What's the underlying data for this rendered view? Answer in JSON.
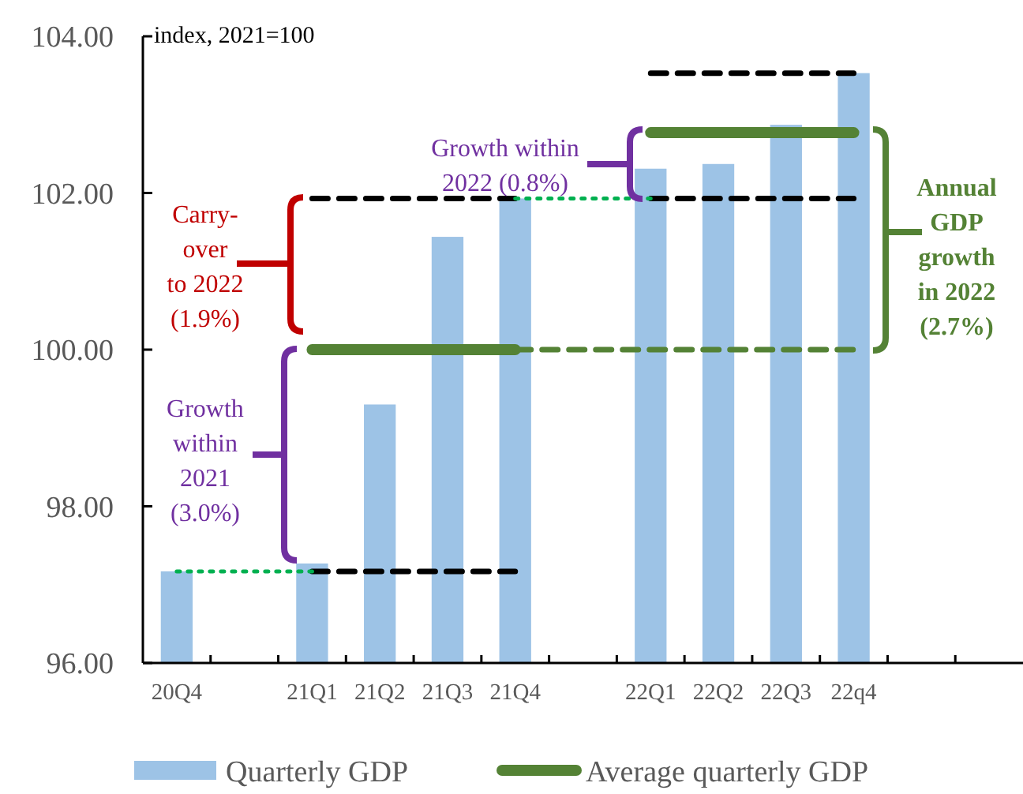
{
  "chart_data": {
    "type": "bar",
    "ylabel": "index, 2021=100",
    "categories": [
      "20Q4",
      null,
      "21Q1",
      "21Q2",
      "21Q3",
      "21Q4",
      null,
      "22Q1",
      "22Q2",
      "22Q3",
      "22q4",
      null,
      null
    ],
    "series": [
      {
        "name": "Quarterly GDP",
        "color": "#9dc3e6",
        "values": [
          97.17,
          null,
          97.27,
          99.3,
          101.44,
          101.93,
          null,
          102.31,
          102.37,
          102.87,
          103.53,
          null,
          null
        ]
      },
      {
        "name": "Average quarterly GDP",
        "type": "line",
        "line_style": "solid",
        "color": "#548235",
        "values": [
          null,
          null,
          100,
          100,
          100,
          100,
          null,
          102.77,
          102.77,
          102.77,
          102.77,
          null,
          null
        ]
      },
      {
        "type": "line",
        "line_style": "dashed",
        "color": "#000000",
        "values": [
          null,
          null,
          97.17,
          97.17,
          97.17,
          97.17,
          null,
          103.53,
          103.53,
          103.53,
          103.53,
          null,
          null
        ]
      },
      {
        "type": "line",
        "line_style": "dashed",
        "color": "#000000",
        "values": [
          null,
          null,
          101.93,
          101.93,
          101.93,
          101.93,
          null,
          101.93,
          101.93,
          101.93,
          101.93,
          null,
          null
        ]
      },
      {
        "type": "line",
        "line_style": "dashed",
        "color": "#548235",
        "values": [
          null,
          null,
          null,
          null,
          null,
          100,
          100,
          100,
          100,
          100,
          100,
          null,
          null
        ]
      },
      {
        "type": "line",
        "line_style": "dotted",
        "color": "#00b050",
        "values": [
          97.17,
          97.17,
          97.17,
          null,
          null,
          101.93,
          101.93,
          101.93,
          null,
          null,
          null,
          null,
          null
        ]
      }
    ],
    "ylim": [
      96,
      104
    ],
    "yticks": [
      {
        "value": 96,
        "label": "96.00"
      },
      {
        "value": 98,
        "label": "98.00"
      },
      {
        "value": 100,
        "label": "100.00"
      },
      {
        "value": 102,
        "label": "102.00"
      },
      {
        "value": 104,
        "label": "104.00"
      }
    ],
    "grid": false,
    "legend": "bottom",
    "annotations": [
      "Carry-\nover\nto 2022\n(1.9%)",
      "Growth\nwithin\n2021\n(3.0%)",
      "Growth within\n2022 (0.8%)",
      "Annual\nGDP\ngrowth\nin 2022\n(2.7%)"
    ]
  }
}
